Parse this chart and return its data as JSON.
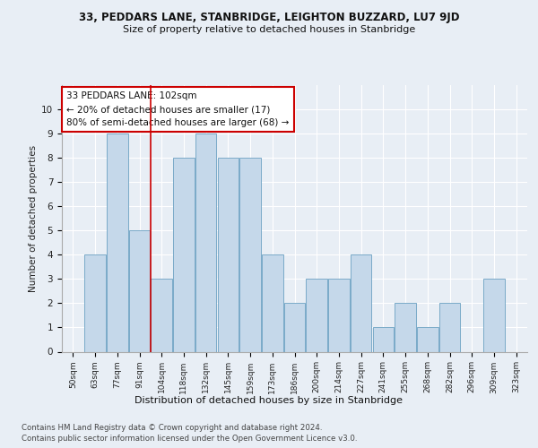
{
  "title1": "33, PEDDARS LANE, STANBRIDGE, LEIGHTON BUZZARD, LU7 9JD",
  "title2": "Size of property relative to detached houses in Stanbridge",
  "xlabel": "Distribution of detached houses by size in Stanbridge",
  "ylabel": "Number of detached properties",
  "categories": [
    "50sqm",
    "63sqm",
    "77sqm",
    "91sqm",
    "104sqm",
    "118sqm",
    "132sqm",
    "145sqm",
    "159sqm",
    "173sqm",
    "186sqm",
    "200sqm",
    "214sqm",
    "227sqm",
    "241sqm",
    "255sqm",
    "268sqm",
    "282sqm",
    "296sqm",
    "309sqm",
    "323sqm"
  ],
  "values": [
    0,
    4,
    9,
    5,
    3,
    8,
    9,
    8,
    8,
    4,
    2,
    3,
    3,
    4,
    1,
    2,
    1,
    2,
    0,
    3,
    0
  ],
  "bar_color": "#c5d8ea",
  "bar_edge_color": "#7aaac8",
  "vline_x": 3.5,
  "annotation_text": "33 PEDDARS LANE: 102sqm\n← 20% of detached houses are smaller (17)\n80% of semi-detached houses are larger (68) →",
  "annotation_box_color": "#ffffff",
  "annotation_box_edge": "#cc0000",
  "vline_color": "#cc0000",
  "ylim": [
    0,
    11
  ],
  "yticks": [
    0,
    1,
    2,
    3,
    4,
    5,
    6,
    7,
    8,
    9,
    10,
    11
  ],
  "footer1": "Contains HM Land Registry data © Crown copyright and database right 2024.",
  "footer2": "Contains public sector information licensed under the Open Government Licence v3.0.",
  "bg_color": "#e8eef5",
  "plot_bg_color": "#e8eef5"
}
